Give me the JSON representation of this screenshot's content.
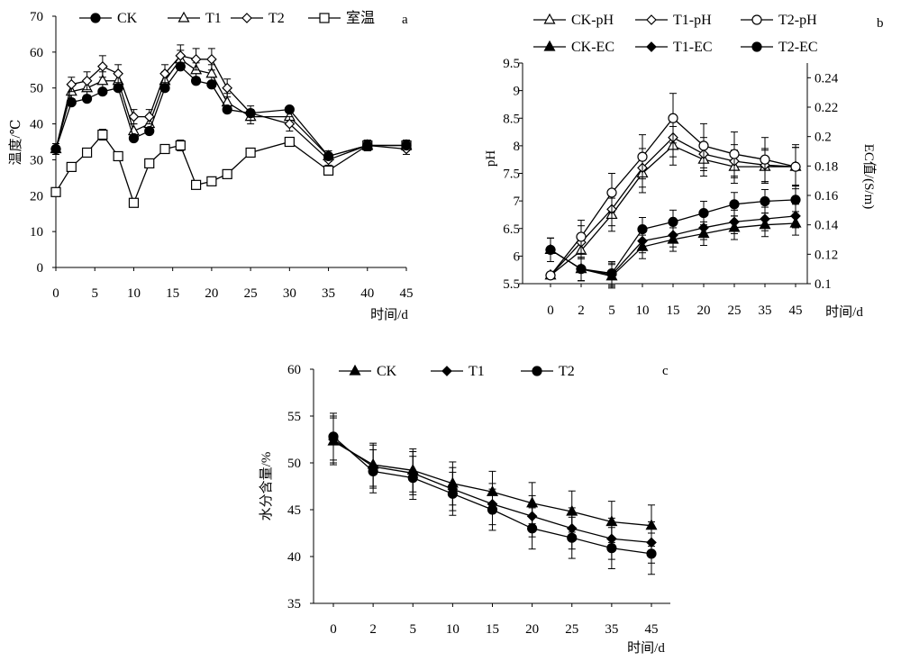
{
  "chart_data": [
    {
      "type": "line",
      "panel_label": "a",
      "xlabel": "时间/d",
      "ylabel": "温度/℃",
      "ylim": [
        0,
        70
      ],
      "yticks": [
        0,
        10,
        20,
        30,
        40,
        50,
        60,
        70
      ],
      "xlim": [
        0,
        45
      ],
      "xticks": [
        0,
        5,
        10,
        15,
        20,
        25,
        30,
        35,
        40,
        45
      ],
      "legend_position": "top",
      "series": [
        {
          "name": "CK",
          "marker": "circle-filled",
          "x": [
            0,
            2,
            4,
            6,
            8,
            10,
            12,
            14,
            16,
            18,
            20,
            22,
            25,
            30,
            35,
            40,
            45
          ],
          "y": [
            33,
            49,
            50,
            52,
            52,
            38,
            40,
            52,
            58,
            55,
            54,
            46,
            42,
            42,
            31,
            34,
            34
          ],
          "err": [
            1.5,
            2,
            2,
            2.5,
            2,
            2,
            2,
            2.5,
            2.5,
            2,
            2.5,
            2.5,
            2,
            2,
            1.5,
            1.5,
            1.5
          ]
        },
        {
          "name": "T1",
          "marker": "triangle-open",
          "x": [
            0,
            2,
            4,
            6,
            8,
            10,
            12,
            14,
            16,
            18,
            20,
            22,
            25,
            30,
            35,
            40,
            45
          ],
          "y": [
            33,
            49,
            50,
            52,
            52,
            38,
            40,
            52,
            58,
            55,
            54,
            46,
            42,
            42,
            31,
            34,
            34
          ],
          "err": [
            1.5,
            2,
            2,
            2.5,
            2,
            2,
            2,
            2.5,
            2.5,
            2,
            2.5,
            2.5,
            2,
            2,
            1.5,
            1.5,
            1.5
          ]
        },
        {
          "name": "T2",
          "marker": "diamond-open",
          "x": [
            0,
            2,
            4,
            6,
            8,
            10,
            12,
            14,
            16,
            18,
            20,
            22,
            25,
            30,
            35,
            40,
            45
          ],
          "y": [
            33,
            51,
            52,
            56,
            54,
            42,
            42,
            54,
            59,
            58,
            58,
            50,
            43,
            40,
            30,
            34,
            33
          ],
          "err": [
            1.5,
            2,
            2.5,
            3,
            2.5,
            2,
            2,
            2.5,
            3,
            3,
            3,
            2.5,
            2,
            2,
            1.5,
            1.5,
            1.5
          ]
        },
        {
          "name": "室温",
          "marker": "square-open",
          "x": [
            0,
            2,
            4,
            6,
            8,
            10,
            12,
            14,
            16,
            18,
            20,
            22,
            25,
            30,
            35,
            40,
            45
          ],
          "y": [
            21,
            28,
            32,
            37,
            31,
            18,
            29,
            33,
            34,
            23,
            24,
            26,
            32,
            35,
            27,
            34,
            34
          ],
          "err": [
            1,
            1,
            1,
            1.5,
            1,
            1,
            1,
            1,
            1.5,
            1,
            1,
            1,
            1,
            1,
            1,
            1,
            1
          ]
        }
      ],
      "overlay_series": [
        {
          "name": "CK-filled",
          "marker": "circle-filled",
          "x": [
            0,
            2,
            4,
            6,
            8,
            10,
            12,
            14,
            16,
            18,
            20,
            22,
            25,
            30,
            35,
            40,
            45
          ],
          "y": [
            33,
            46,
            47,
            49,
            50,
            36,
            38,
            50,
            56,
            52,
            51,
            44,
            43,
            44,
            31,
            34,
            34
          ]
        }
      ]
    },
    {
      "type": "line",
      "panel_label": "b",
      "xlabel": "时间/d",
      "ylabel_left": "pH",
      "ylabel_right": "EC值/(S/m)",
      "categories": [
        "0",
        "2",
        "5",
        "10",
        "15",
        "20",
        "25",
        "35",
        "45"
      ],
      "ylim_left": [
        5.5,
        9.5
      ],
      "yticks_left": [
        5.5,
        6,
        6.5,
        7,
        7.5,
        8,
        8.5,
        9,
        9.5
      ],
      "ylim_right": [
        0.1,
        0.25
      ],
      "yticks_right": [
        0.1,
        0.12,
        0.14,
        0.16,
        0.18,
        0.2,
        0.22,
        0.24
      ],
      "legend_position": "top",
      "series": [
        {
          "name": "CK-pH",
          "axis": "left",
          "marker": "triangle-open",
          "values": [
            5.65,
            6.1,
            6.75,
            7.5,
            8.0,
            7.75,
            7.62,
            7.62,
            7.62
          ],
          "err": [
            0.05,
            0.3,
            0.3,
            0.35,
            0.35,
            0.3,
            0.3,
            0.3,
            0.35
          ]
        },
        {
          "name": "T1-pH",
          "axis": "left",
          "marker": "diamond-open",
          "values": [
            5.65,
            6.25,
            6.85,
            7.6,
            8.15,
            7.85,
            7.72,
            7.65,
            7.62
          ],
          "err": [
            0.05,
            0.3,
            0.3,
            0.35,
            0.35,
            0.3,
            0.3,
            0.3,
            0.35
          ]
        },
        {
          "name": "T2-pH",
          "axis": "left",
          "marker": "circle-open",
          "values": [
            5.65,
            6.35,
            7.15,
            7.8,
            8.5,
            8.0,
            7.85,
            7.75,
            7.62
          ],
          "err": [
            0.05,
            0.3,
            0.35,
            0.4,
            0.45,
            0.4,
            0.4,
            0.4,
            0.4
          ]
        },
        {
          "name": "CK-EC",
          "axis": "right",
          "marker": "triangle-filled",
          "values": [
            0.123,
            0.11,
            0.105,
            0.125,
            0.13,
            0.134,
            0.138,
            0.14,
            0.141
          ],
          "err": [
            0.008,
            0.008,
            0.008,
            0.008,
            0.008,
            0.008,
            0.008,
            0.008,
            0.008
          ]
        },
        {
          "name": "T1-EC",
          "axis": "right",
          "marker": "diamond-filled",
          "values": [
            0.123,
            0.11,
            0.106,
            0.129,
            0.133,
            0.138,
            0.142,
            0.144,
            0.146
          ],
          "err": [
            0.008,
            0.008,
            0.008,
            0.008,
            0.008,
            0.008,
            0.008,
            0.008,
            0.008
          ]
        },
        {
          "name": "T2-EC",
          "axis": "right",
          "marker": "circle-filled",
          "values": [
            0.123,
            0.11,
            0.107,
            0.137,
            0.142,
            0.148,
            0.154,
            0.156,
            0.157
          ],
          "err": [
            0.008,
            0.008,
            0.008,
            0.008,
            0.008,
            0.008,
            0.008,
            0.008,
            0.01
          ]
        }
      ]
    },
    {
      "type": "line",
      "panel_label": "c",
      "xlabel": "时间/d",
      "ylabel": "水分含量/%",
      "categories": [
        "0",
        "2",
        "5",
        "10",
        "15",
        "20",
        "25",
        "35",
        "45"
      ],
      "ylim": [
        35,
        60
      ],
      "yticks": [
        35,
        40,
        45,
        50,
        55,
        60
      ],
      "legend_position": "top",
      "series": [
        {
          "name": "CK",
          "marker": "triangle-filled",
          "values": [
            52.3,
            49.8,
            49.2,
            47.8,
            46.9,
            45.7,
            44.8,
            43.7,
            43.3
          ],
          "err": [
            2.5,
            2.3,
            2.3,
            2.3,
            2.2,
            2.2,
            2.2,
            2.2,
            2.2
          ]
        },
        {
          "name": "T1",
          "marker": "diamond-filled",
          "values": [
            52.5,
            49.6,
            48.9,
            47.2,
            45.6,
            44.3,
            43.0,
            41.9,
            41.5
          ],
          "err": [
            2.5,
            2.3,
            2.3,
            2.3,
            2.2,
            2.2,
            2.2,
            2.2,
            2.2
          ]
        },
        {
          "name": "T2",
          "marker": "circle-filled",
          "values": [
            52.8,
            49.1,
            48.4,
            46.7,
            45.0,
            43.0,
            42.0,
            40.9,
            40.3
          ],
          "err": [
            2.5,
            2.3,
            2.3,
            2.3,
            2.2,
            2.2,
            2.2,
            2.2,
            2.2
          ]
        }
      ]
    }
  ]
}
